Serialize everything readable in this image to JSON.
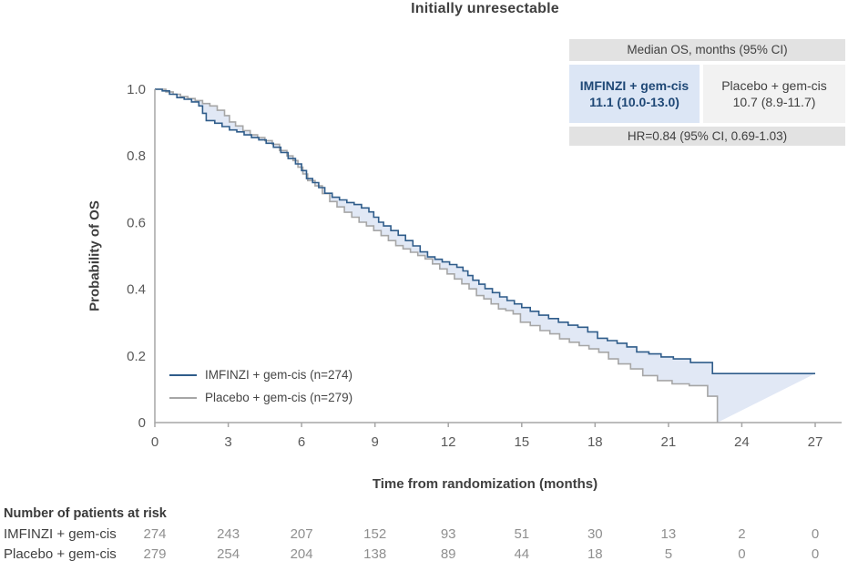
{
  "chart_data": {
    "type": "line",
    "subtype": "kaplan-meier-step",
    "title": "Initially unresectable",
    "xlabel": "Time from randomization (months)",
    "ylabel": "Probability of OS",
    "xlim": [
      0,
      27
    ],
    "ylim": [
      0,
      1.0
    ],
    "x_ticks": [
      0,
      3,
      6,
      9,
      12,
      15,
      18,
      21,
      24,
      27
    ],
    "y_ticks": [
      0,
      0.2,
      0.4,
      0.6,
      0.8,
      1.0
    ],
    "y_tick_labels": [
      "0",
      "0.2",
      "0.4",
      "0.6",
      "0.8",
      "1.0"
    ],
    "grid": false,
    "legend_position": "inside-lower-left",
    "band_fill_color": "#e1e8f5",
    "axis_color": "#a6a6a6",
    "tick_label_color": "#595959",
    "series": [
      {
        "name": "IMFINZI + gem-cis (n=274)",
        "color": "#2f5c8a",
        "points": [
          [
            0,
            1.0
          ],
          [
            0.3,
            0.995
          ],
          [
            0.6,
            0.985
          ],
          [
            0.9,
            0.975
          ],
          [
            1.2,
            0.97
          ],
          [
            1.5,
            0.962
          ],
          [
            1.8,
            0.95
          ],
          [
            1.95,
            0.928
          ],
          [
            2.1,
            0.906
          ],
          [
            2.45,
            0.898
          ],
          [
            2.75,
            0.888
          ],
          [
            3.05,
            0.878
          ],
          [
            3.35,
            0.872
          ],
          [
            3.65,
            0.863
          ],
          [
            3.95,
            0.855
          ],
          [
            4.25,
            0.848
          ],
          [
            4.55,
            0.838
          ],
          [
            4.85,
            0.826
          ],
          [
            5.15,
            0.81
          ],
          [
            5.45,
            0.792
          ],
          [
            5.75,
            0.776
          ],
          [
            6.0,
            0.756
          ],
          [
            6.2,
            0.732
          ],
          [
            6.45,
            0.72
          ],
          [
            6.7,
            0.705
          ],
          [
            6.95,
            0.688
          ],
          [
            7.25,
            0.676
          ],
          [
            7.55,
            0.668
          ],
          [
            7.85,
            0.66
          ],
          [
            8.15,
            0.654
          ],
          [
            8.45,
            0.644
          ],
          [
            8.75,
            0.632
          ],
          [
            8.95,
            0.616
          ],
          [
            9.15,
            0.601
          ],
          [
            9.35,
            0.59
          ],
          [
            9.65,
            0.576
          ],
          [
            9.95,
            0.562
          ],
          [
            10.25,
            0.546
          ],
          [
            10.55,
            0.53
          ],
          [
            10.85,
            0.512
          ],
          [
            11.15,
            0.497
          ],
          [
            11.45,
            0.49
          ],
          [
            11.75,
            0.482
          ],
          [
            12.05,
            0.474
          ],
          [
            12.35,
            0.466
          ],
          [
            12.6,
            0.455
          ],
          [
            12.8,
            0.441
          ],
          [
            13.0,
            0.427
          ],
          [
            13.25,
            0.415
          ],
          [
            13.5,
            0.402
          ],
          [
            13.8,
            0.39
          ],
          [
            14.1,
            0.377
          ],
          [
            14.4,
            0.366
          ],
          [
            14.7,
            0.356
          ],
          [
            15.0,
            0.345
          ],
          [
            15.35,
            0.334
          ],
          [
            15.7,
            0.322
          ],
          [
            16.1,
            0.312
          ],
          [
            16.5,
            0.301
          ],
          [
            16.9,
            0.292
          ],
          [
            17.3,
            0.286
          ],
          [
            17.7,
            0.272
          ],
          [
            18.1,
            0.253
          ],
          [
            18.5,
            0.246
          ],
          [
            18.9,
            0.238
          ],
          [
            19.3,
            0.227
          ],
          [
            19.7,
            0.212
          ],
          [
            20.2,
            0.206
          ],
          [
            20.7,
            0.197
          ],
          [
            21.2,
            0.191
          ],
          [
            21.9,
            0.18
          ],
          [
            22.8,
            0.147
          ],
          [
            27,
            0.147
          ]
        ]
      },
      {
        "name": "Placebo + gem-cis (n=279)",
        "color": "#a6a6a6",
        "points": [
          [
            0,
            1.0
          ],
          [
            0.45,
            0.992
          ],
          [
            0.75,
            0.985
          ],
          [
            1.05,
            0.978
          ],
          [
            1.35,
            0.972
          ],
          [
            1.65,
            0.966
          ],
          [
            1.95,
            0.957
          ],
          [
            2.25,
            0.95
          ],
          [
            2.55,
            0.937
          ],
          [
            2.85,
            0.921
          ],
          [
            3.05,
            0.902
          ],
          [
            3.3,
            0.89
          ],
          [
            3.6,
            0.876
          ],
          [
            3.9,
            0.863
          ],
          [
            4.2,
            0.855
          ],
          [
            4.5,
            0.846
          ],
          [
            4.8,
            0.835
          ],
          [
            5.1,
            0.816
          ],
          [
            5.4,
            0.8
          ],
          [
            5.65,
            0.786
          ],
          [
            5.85,
            0.766
          ],
          [
            6.05,
            0.746
          ],
          [
            6.25,
            0.726
          ],
          [
            6.55,
            0.71
          ],
          [
            6.85,
            0.687
          ],
          [
            7.15,
            0.663
          ],
          [
            7.45,
            0.647
          ],
          [
            7.75,
            0.631
          ],
          [
            8.05,
            0.616
          ],
          [
            8.35,
            0.601
          ],
          [
            8.65,
            0.59
          ],
          [
            8.95,
            0.576
          ],
          [
            9.25,
            0.561
          ],
          [
            9.55,
            0.546
          ],
          [
            9.85,
            0.531
          ],
          [
            10.15,
            0.521
          ],
          [
            10.45,
            0.511
          ],
          [
            10.75,
            0.501
          ],
          [
            11.05,
            0.491
          ],
          [
            11.35,
            0.476
          ],
          [
            11.65,
            0.461
          ],
          [
            11.95,
            0.446
          ],
          [
            12.25,
            0.431
          ],
          [
            12.55,
            0.416
          ],
          [
            12.85,
            0.401
          ],
          [
            13.15,
            0.381
          ],
          [
            13.45,
            0.371
          ],
          [
            13.75,
            0.356
          ],
          [
            14.05,
            0.341
          ],
          [
            14.35,
            0.336
          ],
          [
            14.65,
            0.326
          ],
          [
            14.95,
            0.301
          ],
          [
            15.35,
            0.291
          ],
          [
            15.75,
            0.276
          ],
          [
            16.15,
            0.266
          ],
          [
            16.55,
            0.251
          ],
          [
            16.95,
            0.241
          ],
          [
            17.35,
            0.231
          ],
          [
            17.75,
            0.221
          ],
          [
            18.15,
            0.211
          ],
          [
            18.55,
            0.191
          ],
          [
            18.95,
            0.176
          ],
          [
            19.45,
            0.161
          ],
          [
            19.95,
            0.141
          ],
          [
            20.55,
            0.126
          ],
          [
            21.15,
            0.116
          ],
          [
            21.85,
            0.111
          ],
          [
            22.6,
            0.079
          ],
          [
            23.0,
            0.0
          ]
        ]
      }
    ]
  },
  "stats_box": {
    "header": "Median OS, months (95% CI)",
    "imfinzi": {
      "label": "IMFINZI + gem-cis",
      "value": "11.1 (10.0-13.0)"
    },
    "placebo": {
      "label": "Placebo + gem-cis",
      "value": "10.7 (8.9-11.7)"
    },
    "footer": "HR=0.84 (95% CI, 0.69-1.03)"
  },
  "risk_table": {
    "heading": "Number of patients at risk",
    "time_points": [
      0,
      3,
      6,
      9,
      12,
      15,
      18,
      21,
      24,
      27
    ],
    "rows": [
      {
        "label": "IMFINZI + gem-cis",
        "counts": [
          "274",
          "243",
          "207",
          "152",
          "93",
          "51",
          "30",
          "13",
          "2",
          "0"
        ]
      },
      {
        "label": "Placebo + gem-cis",
        "counts": [
          "279",
          "254",
          "204",
          "138",
          "89",
          "44",
          "18",
          "5",
          "0",
          "0"
        ]
      }
    ]
  },
  "colors": {
    "imfinzi_line": "#2f5c8a",
    "placebo_line": "#a6a6a6",
    "band_fill": "#e1e8f5",
    "imfinzi_text": "#1f4876",
    "box_gray_bg": "#e2e2e2",
    "box_blue_bg": "#dce6f5",
    "box_light_bg": "#f2f2f2"
  }
}
